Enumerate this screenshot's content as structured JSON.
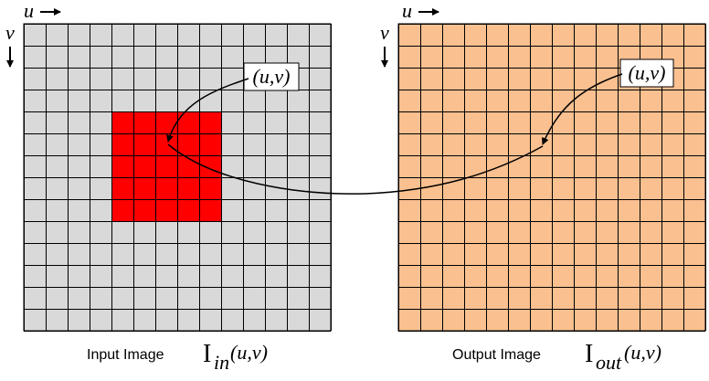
{
  "input_image": {
    "grid_cells": 14,
    "fill_color": "#d9d9d9",
    "highlight_color": "#ff0000",
    "highlight_cells": {
      "col_start": 4,
      "row_start": 4,
      "cols": 5,
      "rows": 5
    },
    "u_axis_label": "u",
    "v_axis_label": "v",
    "point_label": "(u,v)",
    "caption_text": "Input Image",
    "caption_symbol": "I",
    "caption_subscript": "in",
    "caption_args": "(u,v)"
  },
  "output_image": {
    "grid_cells": 14,
    "fill_color": "#fac090",
    "u_axis_label": "u",
    "v_axis_label": "v",
    "point_label": "(u,v)",
    "caption_text": "Output Image",
    "caption_symbol": "I",
    "caption_subscript": "out",
    "caption_args": "(u,v)"
  }
}
